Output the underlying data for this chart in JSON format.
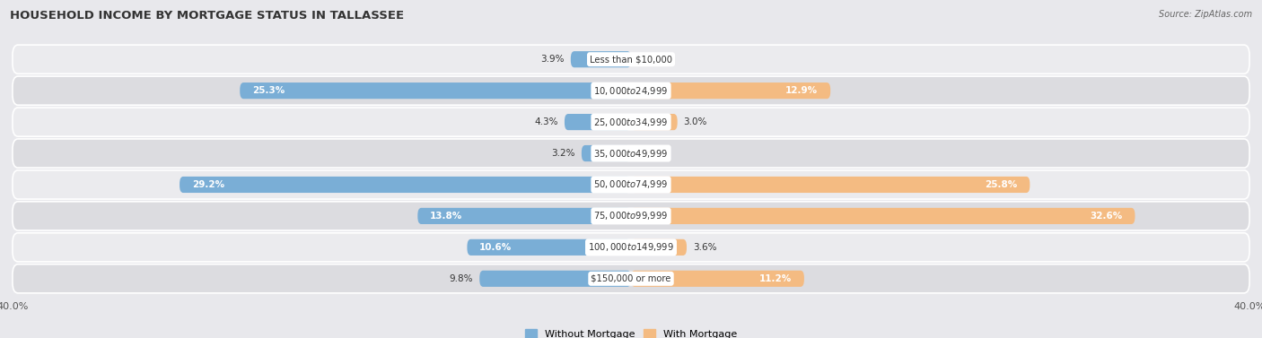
{
  "title": "HOUSEHOLD INCOME BY MORTGAGE STATUS IN TALLASSEE",
  "source": "Source: ZipAtlas.com",
  "categories": [
    "Less than $10,000",
    "$10,000 to $24,999",
    "$25,000 to $34,999",
    "$35,000 to $49,999",
    "$50,000 to $74,999",
    "$75,000 to $99,999",
    "$100,000 to $149,999",
    "$150,000 or more"
  ],
  "without_mortgage": [
    3.9,
    25.3,
    4.3,
    3.2,
    29.2,
    13.8,
    10.6,
    9.8
  ],
  "with_mortgage": [
    0.0,
    12.9,
    3.0,
    0.0,
    25.8,
    32.6,
    3.6,
    11.2
  ],
  "without_mortgage_color": "#7aaed6",
  "with_mortgage_color": "#f4bb82",
  "xlim": 40.0,
  "background_color": "#e8e8ec",
  "row_colors_even": "#ebebee",
  "row_colors_odd": "#dcdce0",
  "label_fontsize": 7.5,
  "title_fontsize": 9.5,
  "axis_label_fontsize": 8,
  "legend_fontsize": 8,
  "without_mortgage_label": "Without Mortgage",
  "with_mortgage_label": "With Mortgage"
}
